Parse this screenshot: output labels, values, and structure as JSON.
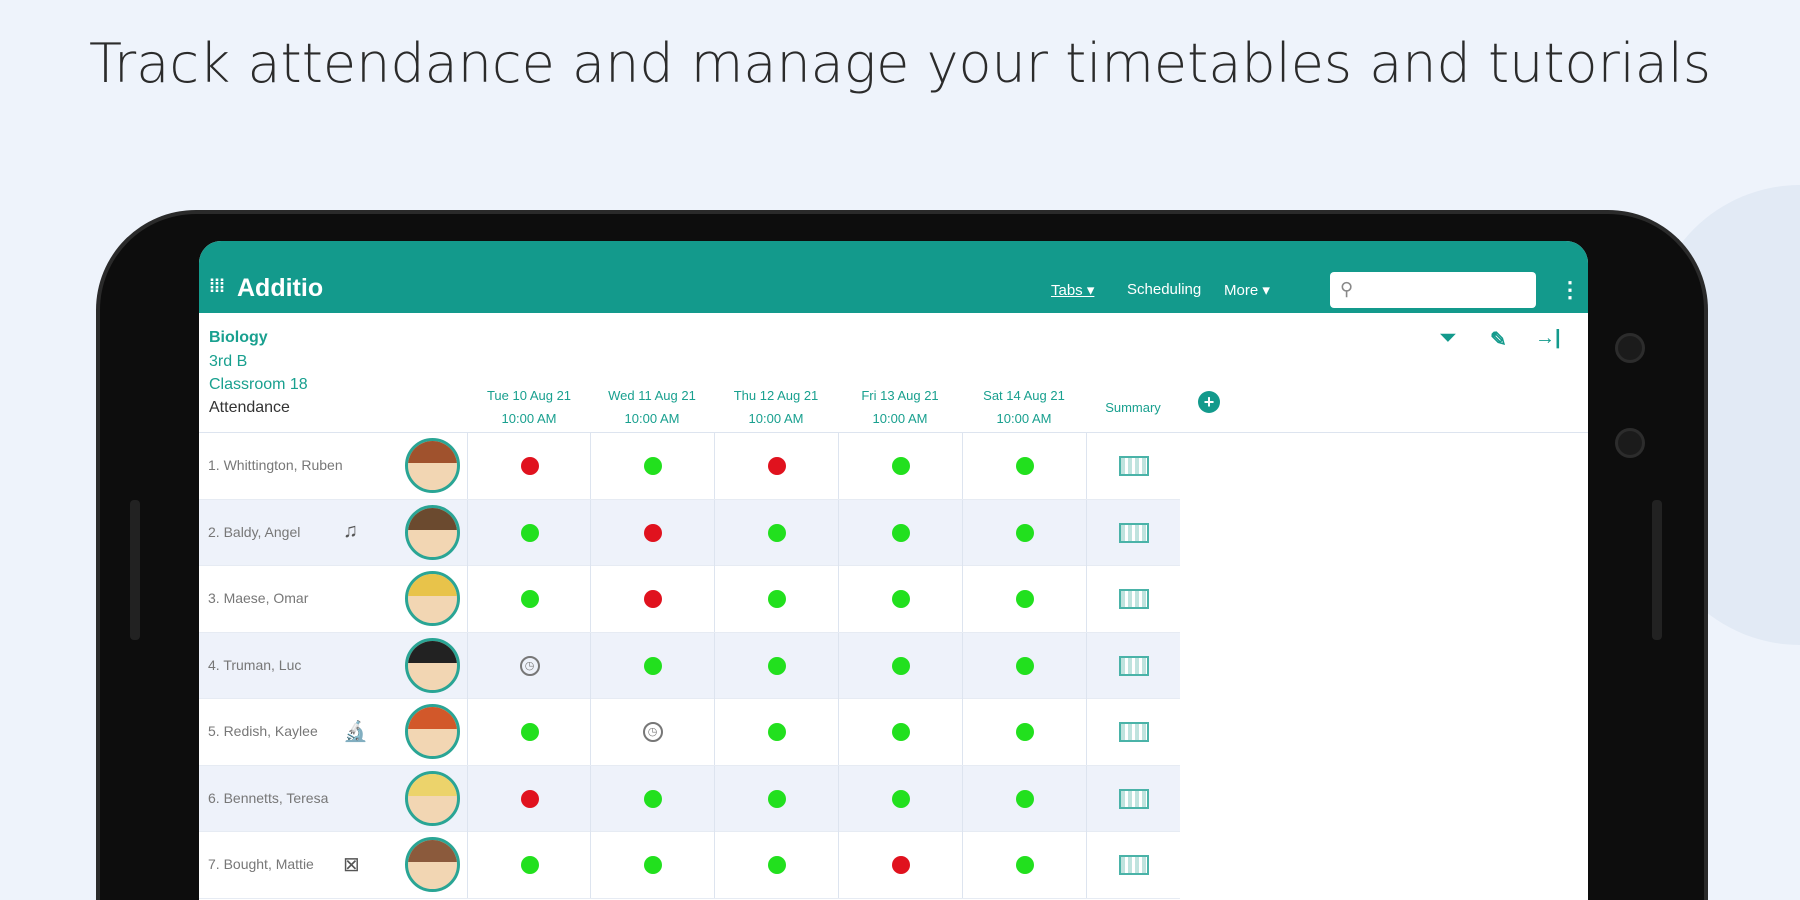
{
  "headline": "Track attendance and manage your timetables and tutorials",
  "app": {
    "name": "Additio",
    "nav": {
      "tabs": "Tabs ▾",
      "scheduling": "Scheduling",
      "more": "More ▾"
    },
    "search_placeholder": ""
  },
  "class_info": {
    "subject": "Biology",
    "group": "3rd B",
    "room": "Classroom 18",
    "view": "Attendance"
  },
  "columns": [
    {
      "date": "Tue 10 Aug 21",
      "time": "10:00 AM"
    },
    {
      "date": "Wed 11 Aug 21",
      "time": "10:00 AM"
    },
    {
      "date": "Thu 12 Aug 21",
      "time": "10:00 AM"
    },
    {
      "date": "Fri 13 Aug 21",
      "time": "10:00 AM"
    },
    {
      "date": "Sat 14 Aug 21",
      "time": "10:00 AM"
    }
  ],
  "summary_label": "Summary",
  "colors": {
    "present": "#22e01e",
    "absent": "#e0121e",
    "accent": "#139a8c"
  },
  "students": [
    {
      "name": "1. Whittington, Ruben",
      "badge": "",
      "hair": "#a0522d",
      "attendance": [
        "absent",
        "present",
        "absent",
        "present",
        "present"
      ]
    },
    {
      "name": "2. Baldy, Angel",
      "badge": "music-icon",
      "hair": "#6b4a2f",
      "attendance": [
        "present",
        "absent",
        "present",
        "present",
        "present"
      ]
    },
    {
      "name": "3. Maese, Omar",
      "badge": "",
      "hair": "#e8c34a",
      "attendance": [
        "present",
        "absent",
        "present",
        "present",
        "present"
      ]
    },
    {
      "name": "4. Truman, Luc",
      "badge": "",
      "hair": "#222222",
      "attendance": [
        "late",
        "present",
        "present",
        "present",
        "present"
      ]
    },
    {
      "name": "5. Redish, Kaylee",
      "badge": "microscope-icon",
      "hair": "#d2582a",
      "attendance": [
        "present",
        "late",
        "present",
        "present",
        "present"
      ]
    },
    {
      "name": "6. Bennetts, Teresa",
      "badge": "",
      "hair": "#ecd36b",
      "attendance": [
        "absent",
        "present",
        "present",
        "present",
        "present"
      ]
    },
    {
      "name": "7. Bought, Mattie",
      "badge": "image-off-icon",
      "hair": "#8b5a3c",
      "attendance": [
        "present",
        "present",
        "present",
        "absent",
        "present"
      ]
    }
  ]
}
